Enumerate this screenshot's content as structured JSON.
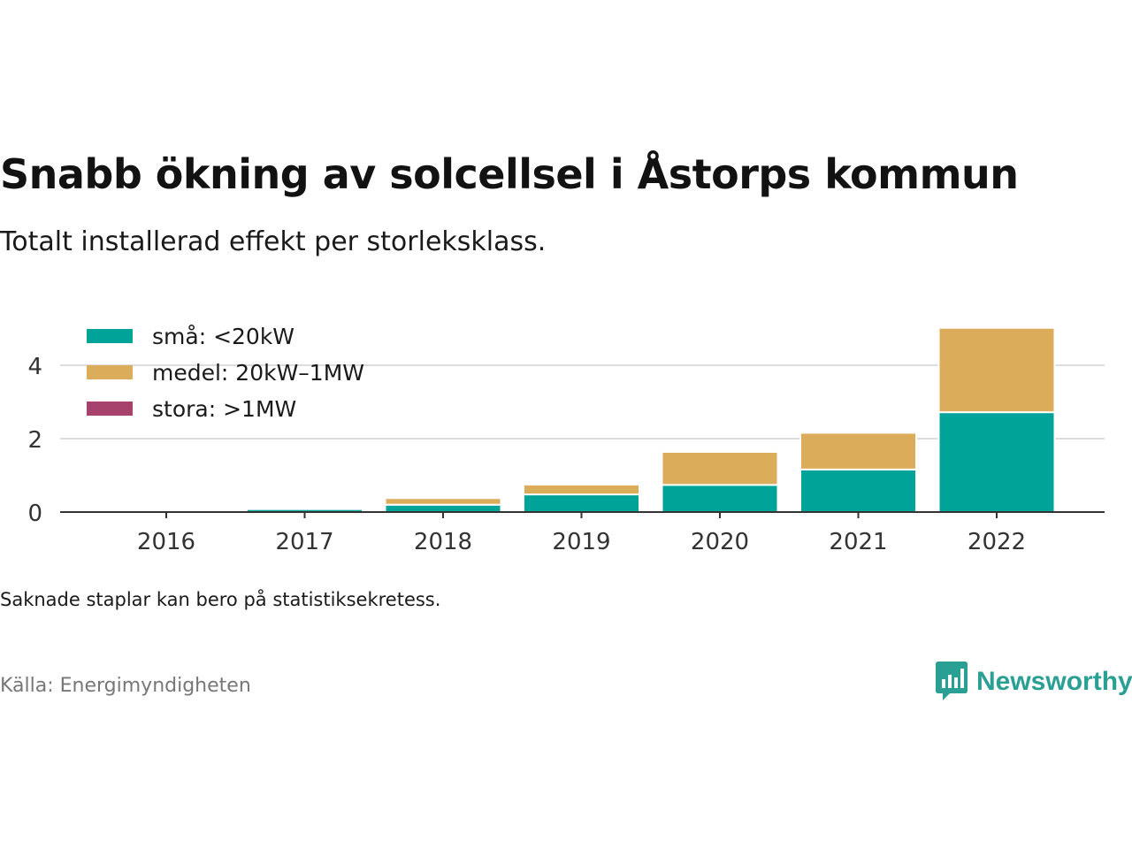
{
  "title": "Snabb ökning av solcellsel i Åstorps kommun",
  "subtitle": "Totalt installerad effekt per storleksklass.",
  "note": "Saknade staplar kan bero på statistiksekretess.",
  "source": "Källa: Energimyndigheten",
  "brand": {
    "name": "Newsworthy",
    "color": "#2a9f93"
  },
  "chart_data": {
    "type": "bar",
    "stacked": true,
    "categories": [
      "2016",
      "2017",
      "2018",
      "2019",
      "2020",
      "2021",
      "2022"
    ],
    "series": [
      {
        "name": "små: <20kW",
        "color": "#00a398",
        "values": [
          0.01,
          0.08,
          0.2,
          0.48,
          0.74,
          1.16,
          2.72
        ]
      },
      {
        "name": "medel: 20kW–1MW",
        "color": "#dbad5b",
        "values": [
          0,
          0,
          0.18,
          0.27,
          0.9,
          1.0,
          2.3
        ]
      },
      {
        "name": "stora: >1MW",
        "color": "#a6426b",
        "values": [
          0,
          0,
          0,
          0,
          0,
          0,
          0
        ]
      }
    ],
    "yticks": [
      0,
      2,
      4
    ],
    "ylim": [
      0,
      5.2
    ],
    "grid": true,
    "legend": "top-left"
  }
}
